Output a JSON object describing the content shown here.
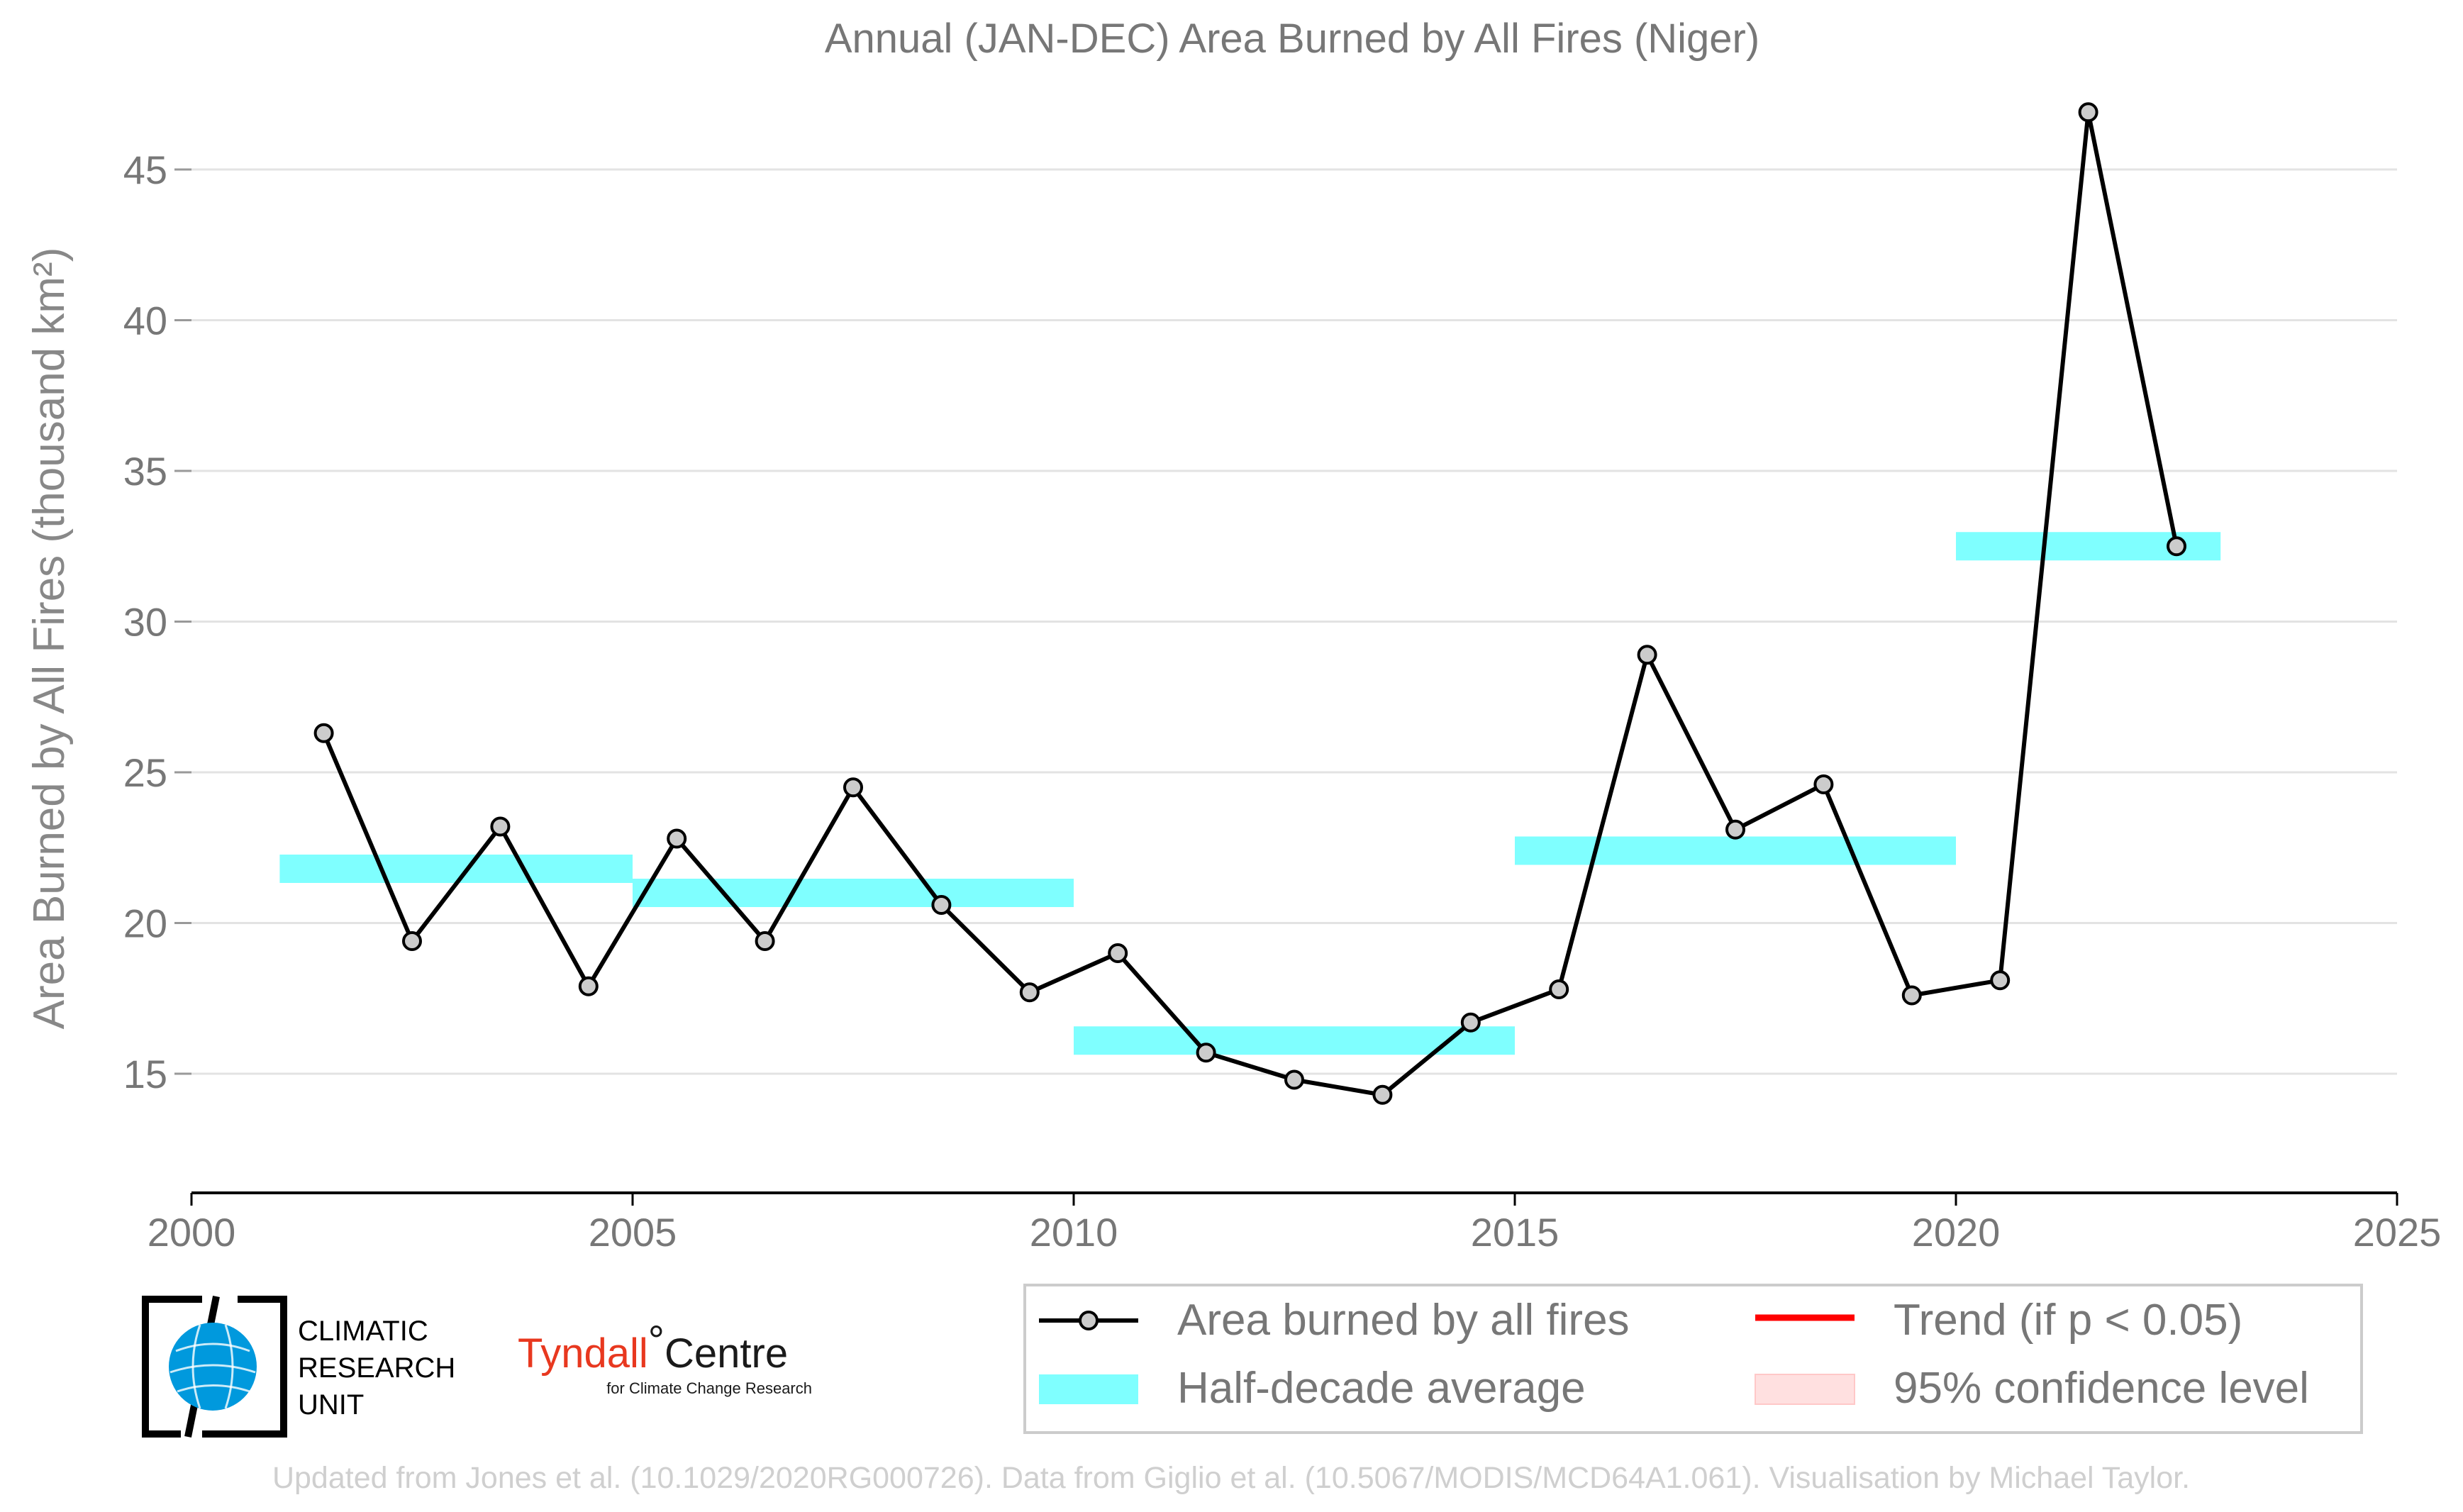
{
  "chart_data": {
    "type": "line",
    "title": "Annual (JAN-DEC) Area Burned by All Fires (Niger)",
    "ylabel": "Area Burned by All Fires (thousand km²)",
    "xlabel": "",
    "xlim": [
      2000,
      2025
    ],
    "ylim": [
      11.8,
      47.8
    ],
    "x_ticks": [
      2000,
      2005,
      2010,
      2015,
      2020,
      2025
    ],
    "y_ticks": [
      15,
      20,
      25,
      30,
      35,
      40,
      45
    ],
    "grid": "horizontal",
    "series": [
      {
        "name": "Area burned by all fires",
        "color": "#000000",
        "marker_color": "#cccccc",
        "x": [
          2001.5,
          2002.5,
          2003.5,
          2004.5,
          2005.5,
          2006.5,
          2007.5,
          2008.5,
          2009.5,
          2010.5,
          2011.5,
          2012.5,
          2013.5,
          2014.5,
          2015.5,
          2016.5,
          2017.5,
          2018.5,
          2019.5,
          2020.5,
          2021.5,
          2022.5
        ],
        "values": [
          26.3,
          19.4,
          23.2,
          17.9,
          22.8,
          19.4,
          24.5,
          20.6,
          17.7,
          19.0,
          15.7,
          14.8,
          14.3,
          16.7,
          17.8,
          28.9,
          23.1,
          24.6,
          17.6,
          18.1,
          46.9,
          32.5
        ]
      }
    ],
    "half_decade_average": {
      "name": "Half-decade average",
      "color": "#7fffff",
      "segments": [
        {
          "x0": 2001,
          "x1": 2005,
          "value": 21.8
        },
        {
          "x0": 2005,
          "x1": 2010,
          "value": 21.0
        },
        {
          "x0": 2010,
          "x1": 2015,
          "value": 16.1
        },
        {
          "x0": 2015,
          "x1": 2020,
          "value": 22.4
        },
        {
          "x0": 2020,
          "x1": 2023,
          "value": 32.5
        }
      ]
    },
    "legend": {
      "placement": "bottom-right",
      "items": [
        {
          "label": "Area burned by all fires",
          "kind": "line-marker",
          "color": "#000000"
        },
        {
          "label": "Trend (if p < 0.05)",
          "kind": "line",
          "color": "#ff0000"
        },
        {
          "label": "Half-decade average",
          "kind": "patch",
          "color": "#7fffff"
        },
        {
          "label": "95% confidence level",
          "kind": "patch",
          "color": "#ffe0e0"
        }
      ]
    }
  },
  "logos": {
    "cru": {
      "line1": "CLIMATIC",
      "line2": "RESEARCH",
      "line3": "UNIT",
      "icon": "globe-icon",
      "color": "#0099dd"
    },
    "tyndall": {
      "main": "Tyndall",
      "degree": "°",
      "centre": "Centre",
      "sub": "for Climate Change Research",
      "color": "#e8381f"
    }
  },
  "footer": "Updated from Jones et al. (10.1029/2020RG000726). Data from Giglio et al. (10.5067/MODIS/MCD64A1.061). Visualisation by Michael Taylor."
}
